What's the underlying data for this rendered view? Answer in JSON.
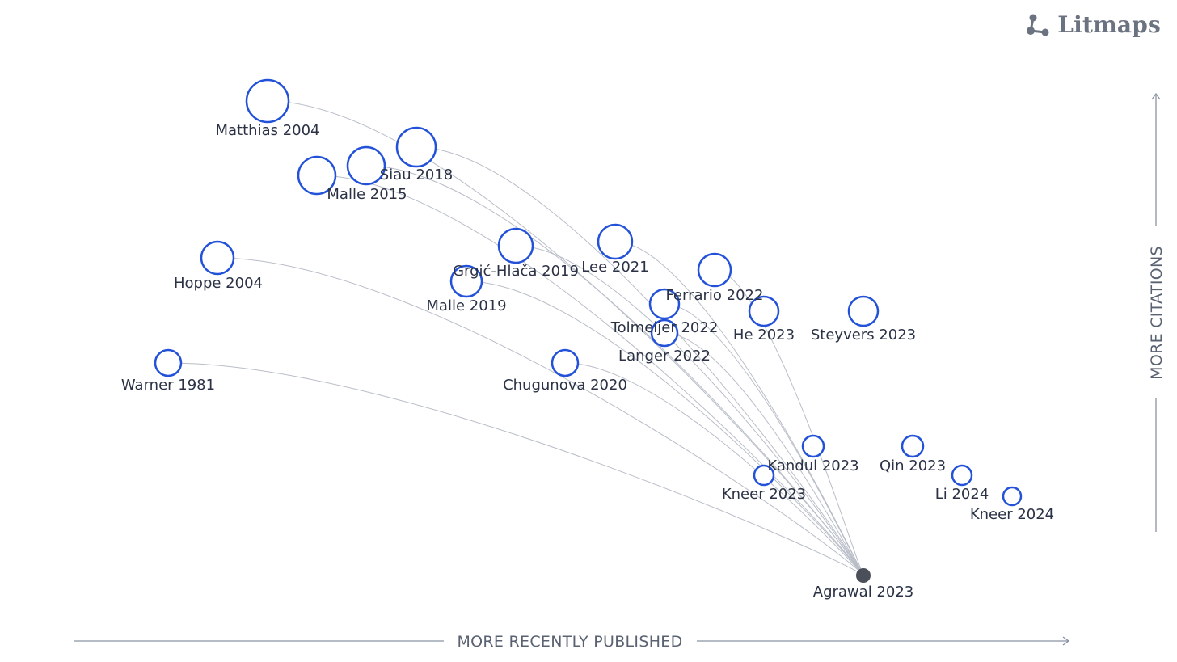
{
  "brand": {
    "name": "Litmaps",
    "logo_icon": "litmaps-logo-icon"
  },
  "axes": {
    "x_label": "MORE RECENTLY PUBLISHED",
    "y_label": "MORE CITATIONS"
  },
  "colors": {
    "node_stroke": "#2352d9",
    "edge": "#b8bdc7",
    "seed": "#4a4f5a",
    "axis": "#8a93a3"
  },
  "seed": {
    "label": "Agrawal 2023"
  },
  "papers": [
    {
      "label": "Matthias 2004",
      "linked": true
    },
    {
      "label": "Siau 2018",
      "linked": true
    },
    {
      "label": "Malle 2015",
      "linked": true
    },
    {
      "label": "Hoppe 2004",
      "linked": true
    },
    {
      "label": "Grgić-Hlača 2019",
      "linked": true
    },
    {
      "label": "Lee 2021",
      "linked": true
    },
    {
      "label": "Ferrario 2022",
      "linked": true
    },
    {
      "label": "Malle 2019",
      "linked": true
    },
    {
      "label": "Tolmeijer 2022",
      "linked": true
    },
    {
      "label": "He 2023",
      "linked": false
    },
    {
      "label": "Steyvers 2023",
      "linked": false
    },
    {
      "label": "Langer 2022",
      "linked": true
    },
    {
      "label": "Warner 1981",
      "linked": true
    },
    {
      "label": "Chugunova 2020",
      "linked": true
    },
    {
      "label": "Kandul 2023",
      "linked": false
    },
    {
      "label": "Qin 2023",
      "linked": false
    },
    {
      "label": "Kneer 2023",
      "linked": false
    },
    {
      "label": "Li 2024",
      "linked": false
    },
    {
      "label": "Kneer 2024",
      "linked": false
    }
  ]
}
